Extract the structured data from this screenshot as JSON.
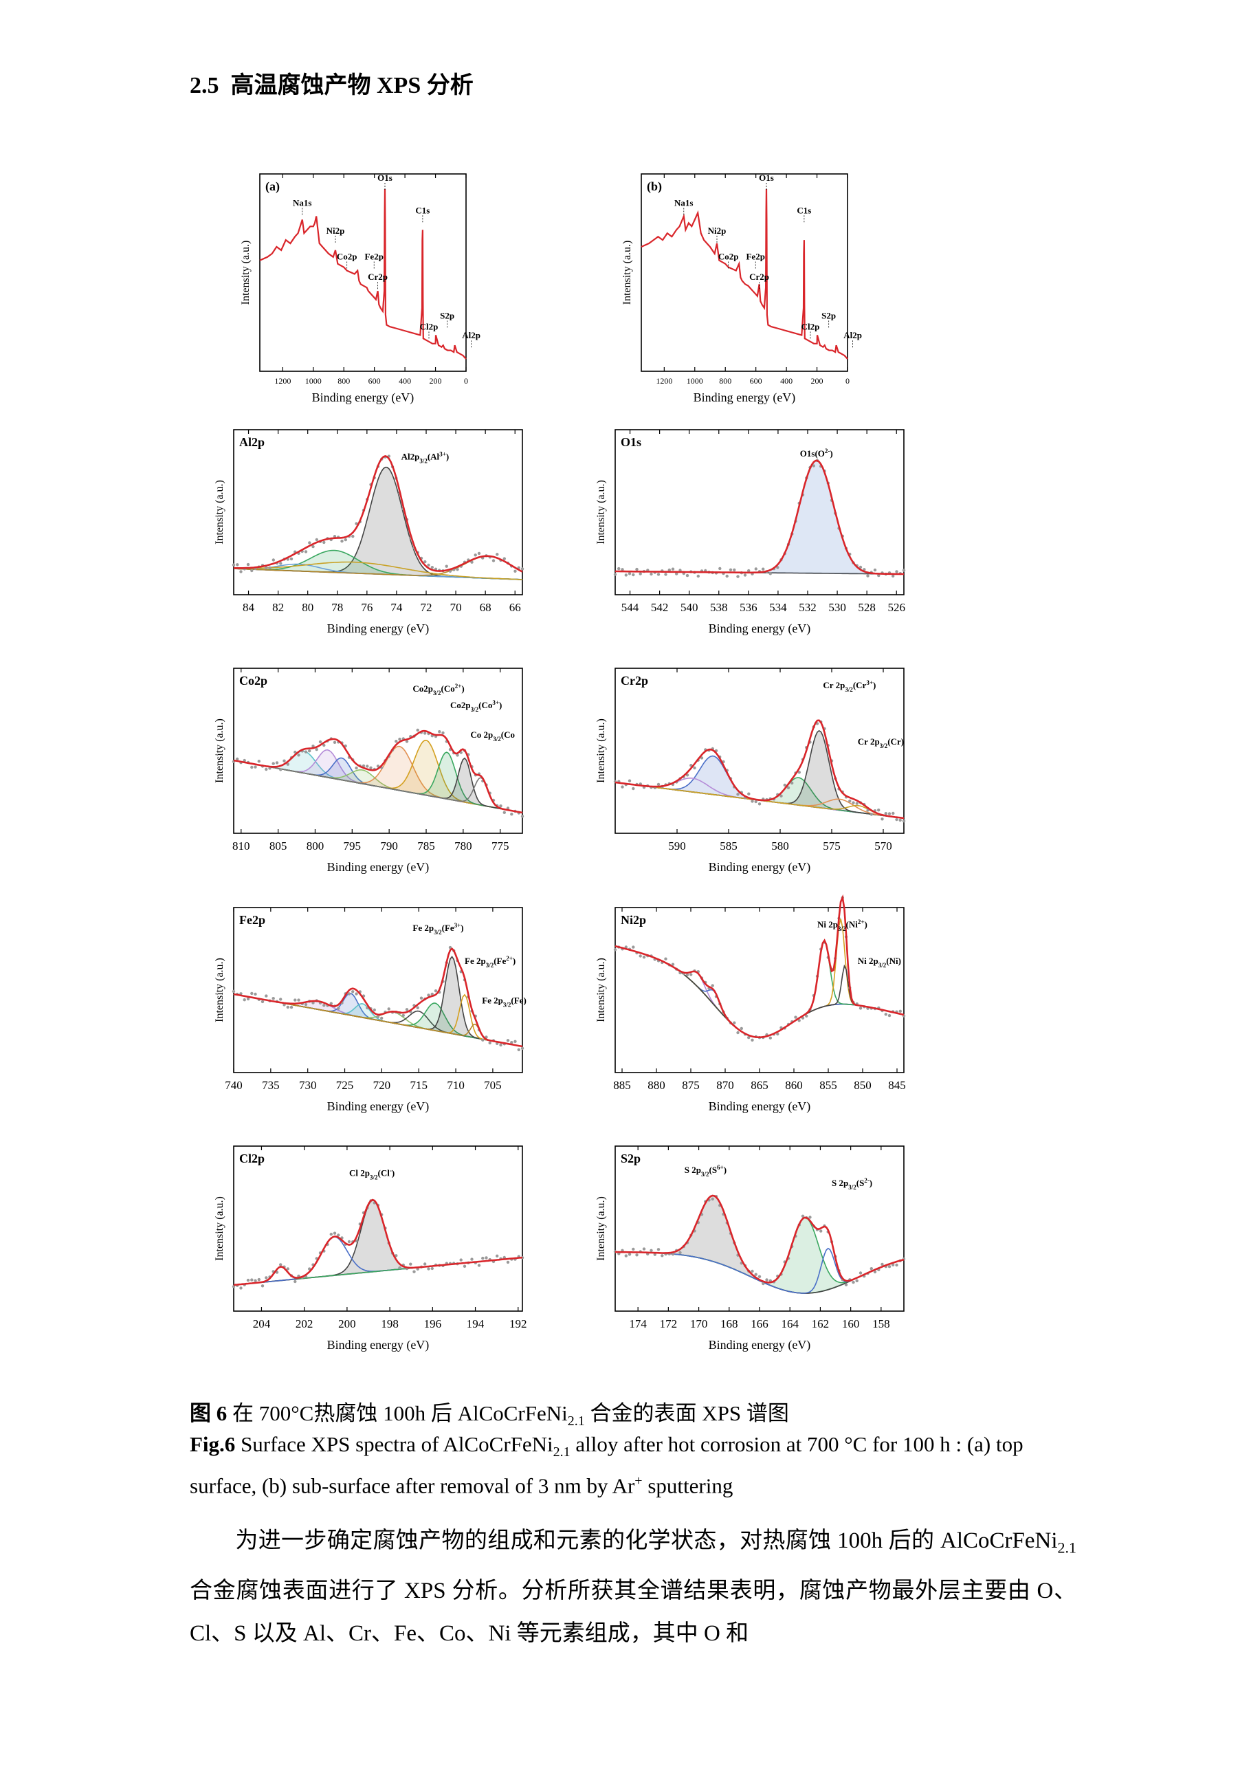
{
  "section": {
    "number": "2.5",
    "title": "高温腐蚀产物 XPS 分析"
  },
  "common": {
    "xlabel": "Binding energy (eV)",
    "ylabel": "Intensity (a.u.)"
  },
  "colors": {
    "fit": "#d9252a",
    "background": "#555555",
    "raw": "#9a9a9a"
  },
  "chart_data": [
    {
      "id": "survey-a",
      "panel": "(a)",
      "type": "line",
      "reversed_x": true,
      "xlim": [
        1350,
        0
      ],
      "ticks": [
        1200,
        1000,
        800,
        600,
        400,
        200,
        0
      ],
      "series": [
        {
          "x": [
            1350,
            1300,
            1270,
            1240,
            1210,
            1180,
            1150,
            1120,
            1100,
            1072,
            1060,
            1040,
            1020,
            1000,
            990,
            980,
            960,
            940,
            900,
            870,
            855,
            840,
            800,
            780,
            730,
            710,
            700,
            690,
            670,
            650,
            640,
            620,
            600,
            590,
            578,
            570,
            560,
            545,
            535,
            533,
            531,
            529,
            527,
            520,
            500,
            460,
            420,
            380,
            340,
            300,
            288,
            286,
            284,
            282,
            280,
            260,
            240,
            220,
            200,
            198,
            180,
            160,
            150,
            140,
            120,
            100,
            80,
            74,
            60,
            40,
            20,
            0
          ],
          "y": [
            0.58,
            0.6,
            0.62,
            0.66,
            0.64,
            0.7,
            0.68,
            0.72,
            0.74,
            0.82,
            0.74,
            0.76,
            0.78,
            0.78,
            0.8,
            0.84,
            0.68,
            0.66,
            0.62,
            0.6,
            0.64,
            0.56,
            0.54,
            0.52,
            0.5,
            0.52,
            0.46,
            0.44,
            0.43,
            0.42,
            0.4,
            0.38,
            0.36,
            0.35,
            0.4,
            0.32,
            0.3,
            0.28,
            0.4,
            0.85,
            1.0,
            0.8,
            0.26,
            0.2,
            0.19,
            0.18,
            0.17,
            0.16,
            0.15,
            0.14,
            0.3,
            0.7,
            0.76,
            0.35,
            0.12,
            0.11,
            0.1,
            0.09,
            0.09,
            0.14,
            0.08,
            0.07,
            0.08,
            0.06,
            0.05,
            0.05,
            0.04,
            0.08,
            0.04,
            0.03,
            0.02,
            0.0
          ]
        }
      ],
      "annotations": [
        "O1s",
        "Na1s",
        "Ni2p",
        "Co2p",
        "Fe2p",
        "Cr2p",
        "C1s",
        "S2p",
        "Cl2p",
        "Al2p"
      ]
    },
    {
      "id": "survey-b",
      "panel": "(b)",
      "type": "line",
      "reversed_x": true,
      "xlim": [
        1350,
        0
      ],
      "ticks": [
        1200,
        1000,
        800,
        600,
        400,
        200,
        0
      ],
      "series": [
        {
          "x": [
            1350,
            1300,
            1270,
            1240,
            1210,
            1180,
            1150,
            1120,
            1100,
            1072,
            1060,
            1040,
            1020,
            1000,
            990,
            980,
            960,
            940,
            900,
            870,
            855,
            840,
            800,
            780,
            730,
            710,
            700,
            690,
            670,
            650,
            640,
            620,
            600,
            590,
            578,
            570,
            560,
            545,
            535,
            533,
            531,
            529,
            527,
            520,
            500,
            460,
            420,
            380,
            340,
            300,
            288,
            286,
            284,
            282,
            280,
            260,
            240,
            220,
            200,
            198,
            180,
            160,
            150,
            140,
            120,
            100,
            80,
            74,
            60,
            40,
            20,
            0
          ],
          "y": [
            0.66,
            0.68,
            0.7,
            0.72,
            0.7,
            0.74,
            0.72,
            0.76,
            0.78,
            0.84,
            0.76,
            0.8,
            0.78,
            0.82,
            0.84,
            0.86,
            0.74,
            0.7,
            0.66,
            0.62,
            0.68,
            0.58,
            0.56,
            0.54,
            0.52,
            0.56,
            0.48,
            0.46,
            0.44,
            0.43,
            0.42,
            0.4,
            0.38,
            0.37,
            0.44,
            0.34,
            0.32,
            0.3,
            0.42,
            0.86,
            1.0,
            0.82,
            0.26,
            0.2,
            0.19,
            0.18,
            0.17,
            0.16,
            0.15,
            0.14,
            0.3,
            0.62,
            0.7,
            0.32,
            0.12,
            0.11,
            0.1,
            0.09,
            0.09,
            0.14,
            0.08,
            0.07,
            0.08,
            0.06,
            0.05,
            0.05,
            0.04,
            0.08,
            0.04,
            0.03,
            0.02,
            0.0
          ]
        }
      ],
      "annotations": [
        "O1s",
        "Na1s",
        "Ni2p",
        "Co2p",
        "Fe2p",
        "Cr2p",
        "C1s",
        "S2p",
        "Cl2p",
        "Al2p"
      ]
    },
    {
      "id": "al2p",
      "panel": "Al2p",
      "type": "line",
      "reversed_x": true,
      "xlim": [
        85,
        65.5
      ],
      "ticks": [
        84,
        82,
        80,
        78,
        76,
        74,
        72,
        70,
        68,
        66
      ],
      "background_line": [
        0.12,
        0.04
      ],
      "peaks": [
        {
          "center": 74.7,
          "height": 0.78,
          "width": 1.1,
          "color": "#444444",
          "fill": true
        },
        {
          "center": 78.2,
          "height": 0.16,
          "width": 1.6,
          "color": "#3aa860",
          "fill": true
        },
        {
          "center": 80.6,
          "height": 0.05,
          "width": 1.4,
          "color": "#6aa0d8",
          "fill": false
        },
        {
          "center": 67.8,
          "height": 0.16,
          "width": 1.6,
          "color": "#b5882a",
          "fill": false
        },
        {
          "center": 76.8,
          "height": 0.08,
          "width": 3.2,
          "color": "#c9a227",
          "fill": false
        }
      ],
      "annotations": [
        {
          "text": "Al2p3/2(Al3+)",
          "main": "Al2p",
          "sub": "3/2",
          "rest": "(Al",
          "sup": "3+",
          "end": ")"
        }
      ]
    },
    {
      "id": "o1s",
      "panel": "O1s",
      "type": "line",
      "reversed_x": true,
      "xlim": [
        545,
        525.5
      ],
      "ticks": [
        544,
        542,
        540,
        538,
        536,
        534,
        532,
        530,
        528,
        526
      ],
      "background_line": [
        0.1,
        0.08
      ],
      "peaks": [
        {
          "center": 531.4,
          "height": 0.82,
          "width": 1.15,
          "color": "#4a78c8",
          "fill": true
        }
      ],
      "annotations": [
        {
          "text": "O1s(O2-)",
          "main": "O1s",
          "sub": "",
          "rest": "(O",
          "sup": "2-",
          "end": ")"
        }
      ]
    },
    {
      "id": "co2p",
      "panel": "Co2p",
      "type": "line",
      "reversed_x": true,
      "xlim": [
        811,
        772
      ],
      "ticks": [
        810,
        805,
        800,
        795,
        790,
        785,
        780,
        775
      ],
      "background_line": [
        0.46,
        0.08
      ],
      "peaks": [
        {
          "center": 801.5,
          "height": 0.16,
          "width": 1.6,
          "color": "#5bc2c9",
          "fill": true
        },
        {
          "center": 798.3,
          "height": 0.2,
          "width": 1.4,
          "color": "#b58cd8",
          "fill": true
        },
        {
          "center": 796.4,
          "height": 0.16,
          "width": 1.2,
          "color": "#4a6fc8",
          "fill": true
        },
        {
          "center": 793.6,
          "height": 0.1,
          "width": 1.6,
          "color": "#8fc06a",
          "fill": true
        },
        {
          "center": 788.6,
          "height": 0.32,
          "width": 1.8,
          "color": "#e29052",
          "fill": true
        },
        {
          "center": 785.0,
          "height": 0.4,
          "width": 1.6,
          "color": "#d4a020",
          "fill": true
        },
        {
          "center": 782.2,
          "height": 0.34,
          "width": 1.2,
          "color": "#3aa860",
          "fill": true
        },
        {
          "center": 779.8,
          "height": 0.32,
          "width": 0.85,
          "color": "#444444",
          "fill": true
        },
        {
          "center": 777.6,
          "height": 0.2,
          "width": 0.9,
          "color": "#777777",
          "fill": false
        }
      ],
      "annotations": [
        {
          "text": "Co2p3/2(Co2+)",
          "main": "Co2p",
          "sub": "3/2",
          "rest": "(Co",
          "sup": "2+",
          "end": ")"
        },
        {
          "text": "Co2p3/2(Co3+)",
          "main": "Co2p",
          "sub": "3/2",
          "rest": "(Co",
          "sup": "3+",
          "end": ")"
        },
        {
          "text": "Co 2p3/2(Co",
          "main": "Co 2p",
          "sub": "3/2",
          "rest": "(Co",
          "sup": "",
          "end": ""
        }
      ]
    },
    {
      "id": "cr2p",
      "panel": "Cr2p",
      "type": "line",
      "reversed_x": true,
      "xlim": [
        596,
        568
      ],
      "ticks": [
        590,
        585,
        580,
        575,
        570
      ],
      "background_line": [
        0.3,
        0.04
      ],
      "peaks": [
        {
          "center": 586.5,
          "height": 0.28,
          "width": 1.3,
          "color": "#4a6fc8",
          "fill": true
        },
        {
          "center": 588.5,
          "height": 0.1,
          "width": 1.5,
          "color": "#b58cd8",
          "fill": false
        },
        {
          "center": 578.2,
          "height": 0.2,
          "width": 1.2,
          "color": "#3aa860",
          "fill": true
        },
        {
          "center": 576.2,
          "height": 0.56,
          "width": 0.95,
          "color": "#444444",
          "fill": true
        },
        {
          "center": 574.2,
          "height": 0.08,
          "width": 1.3,
          "color": "#e29052",
          "fill": false
        },
        {
          "center": 572.4,
          "height": 0.05,
          "width": 1.0,
          "color": "#c9a227",
          "fill": false
        }
      ],
      "annotations": [
        {
          "text": "Cr 2p3/2(Cr3+)",
          "main": "Cr 2p",
          "sub": "3/2",
          "rest": "(Cr",
          "sup": "3+",
          "end": ")"
        },
        {
          "text": "Cr 2p3/2(Cr)",
          "main": "Cr 2p",
          "sub": "3/2",
          "rest": "(Cr)",
          "sup": "",
          "end": ""
        }
      ]
    },
    {
      "id": "fe2p",
      "panel": "Fe2p",
      "type": "line",
      "reversed_x": true,
      "xlim": [
        740,
        701
      ],
      "ticks": [
        740,
        735,
        730,
        725,
        720,
        715,
        710,
        705
      ],
      "background_line": [
        0.5,
        0.12
      ],
      "peaks": [
        {
          "center": 728.5,
          "height": 0.06,
          "width": 1.8,
          "color": "#b58cd8",
          "fill": true
        },
        {
          "center": 724.2,
          "height": 0.16,
          "width": 1.0,
          "color": "#4a6fc8",
          "fill": true
        },
        {
          "center": 722.6,
          "height": 0.1,
          "width": 1.0,
          "color": "#5bc2c9",
          "fill": true
        },
        {
          "center": 718.4,
          "height": 0.08,
          "width": 1.5,
          "color": "#8fc06a",
          "fill": false
        },
        {
          "center": 715.0,
          "height": 0.12,
          "width": 1.3,
          "color": "#444444",
          "fill": false
        },
        {
          "center": 712.8,
          "height": 0.2,
          "width": 1.3,
          "color": "#3aa860",
          "fill": true
        },
        {
          "center": 710.5,
          "height": 0.56,
          "width": 0.95,
          "color": "#444444",
          "fill": true
        },
        {
          "center": 708.8,
          "height": 0.3,
          "width": 0.7,
          "color": "#d4a020",
          "fill": false
        },
        {
          "center": 707.4,
          "height": 0.1,
          "width": 0.6,
          "color": "#b5882a",
          "fill": false
        }
      ],
      "annotations": [
        {
          "text": "Fe 2p3/2(Fe3+)",
          "main": "Fe 2p",
          "sub": "3/2",
          "rest": "(Fe",
          "sup": "3+",
          "end": ")"
        },
        {
          "text": "Fe 2p3/2(Fe2+)",
          "main": "Fe 2p",
          "sub": "3/2",
          "rest": "(Fe",
          "sup": "2+",
          "end": ")"
        },
        {
          "text": "Fe 2p3/2(Fe)",
          "main": "Fe 2p",
          "sub": "3/2",
          "rest": "(Fe)",
          "sup": "",
          "end": ""
        }
      ]
    },
    {
      "id": "ni2p",
      "panel": "Ni2p",
      "type": "line",
      "reversed_x": true,
      "xlim": [
        886,
        844
      ],
      "ticks": [
        885,
        880,
        875,
        870,
        865,
        860,
        855,
        850,
        845
      ],
      "background_line": [
        0.85,
        0.35
      ],
      "background_dip": {
        "center": 866,
        "depth": 0.42,
        "width": 8
      },
      "peaks": [
        {
          "center": 874.0,
          "height": 0.1,
          "width": 1.0,
          "color": "#b58cd8",
          "fill": false
        },
        {
          "center": 871.6,
          "height": 0.1,
          "width": 0.8,
          "color": "#4a6fc8",
          "fill": false
        },
        {
          "center": 855.6,
          "height": 0.48,
          "width": 0.8,
          "color": "#3aa860",
          "fill": false
        },
        {
          "center": 853.2,
          "height": 0.62,
          "width": 0.6,
          "color": "#d4a020",
          "fill": false
        },
        {
          "center": 852.6,
          "height": 0.28,
          "width": 0.45,
          "color": "#444444",
          "fill": false
        }
      ],
      "annotations": [
        {
          "text": "Ni 2p3/2(Ni2+)",
          "main": "Ni 2p",
          "sub": "3/2",
          "rest": "(Ni",
          "sup": "2+",
          "end": ")"
        },
        {
          "text": "Ni 2p3/2(Ni)",
          "main": "Ni 2p",
          "sub": "3/2",
          "rest": "(Ni)",
          "sup": "",
          "end": ""
        }
      ]
    },
    {
      "id": "cl2p",
      "panel": "Cl2p",
      "type": "line",
      "reversed_x": true,
      "xlim": [
        205.3,
        191.8
      ],
      "ticks": [
        204,
        202,
        200,
        198,
        196,
        194,
        192
      ],
      "background_line": [
        0.12,
        0.32
      ],
      "peaks": [
        {
          "center": 198.8,
          "height": 0.52,
          "width": 0.55,
          "color": "#444444",
          "fill": true
        },
        {
          "center": 200.6,
          "height": 0.28,
          "width": 0.6,
          "color": "#4a6fc8",
          "fill": false
        },
        {
          "center": 203.1,
          "height": 0.1,
          "width": 0.3,
          "color": "#3aa860",
          "fill": false
        }
      ],
      "annotations": [
        {
          "text": "Cl 2p3/2(Cl-)",
          "main": "Cl 2p",
          "sub": "3/2",
          "rest": "(Cl",
          "sup": "-",
          "end": ")"
        }
      ]
    },
    {
      "id": "s2p",
      "panel": "S2p",
      "type": "line",
      "reversed_x": true,
      "xlim": [
        175.5,
        156.5
      ],
      "ticks": [
        174,
        172,
        170,
        168,
        166,
        164,
        162,
        160,
        158
      ],
      "background_line": [
        0.36,
        0.36
      ],
      "background_dip": {
        "center": 163,
        "depth": 0.3,
        "width": 5
      },
      "peaks": [
        {
          "center": 169.0,
          "height": 0.48,
          "width": 1.0,
          "color": "#444444",
          "fill": true
        },
        {
          "center": 163.0,
          "height": 0.55,
          "width": 0.9,
          "color": "#3aa860",
          "fill": true
        },
        {
          "center": 161.5,
          "height": 0.3,
          "width": 0.45,
          "color": "#4a6fc8",
          "fill": false
        }
      ],
      "annotations": [
        {
          "text": "S 2p3/2(S6+)",
          "main": "S 2p",
          "sub": "3/2",
          "rest": "(S",
          "sup": "6+",
          "end": ")"
        },
        {
          "text": "S 2p3/2(S2-)",
          "main": "S 2p",
          "sub": "3/2",
          "rest": "(S",
          "sup": "2-",
          "end": ")"
        }
      ]
    }
  ],
  "caption": {
    "cn_label": "图 6",
    "cn_text_before": " 在 700°C热腐蚀 100h 后 AlCoCrFeNi",
    "cn_sub": "2.1",
    "cn_text_after": " 合金的表面 XPS 谱图",
    "en_label": "Fig.6",
    "en_text_before": " Surface XPS spectra of AlCoCrFeNi",
    "en_sub": "2.1",
    "en_text_mid": " alloy after hot corrosion at 700 °C for 100 h : (a) top surface, (b) sub-surface after removal of 3 nm by Ar",
    "en_sup": "+",
    "en_text_after": " sputtering"
  },
  "paragraph": {
    "part1": "为进一步确定腐蚀产物的组成和元素的化学状态，对热腐蚀 100h 后的 AlCoCrFeNi",
    "sub": "2.1",
    "part2": " 合金腐蚀表面进行了 XPS 分析。分析所获其全谱结果表明，腐蚀产物最外层主要由 O、Cl、S 以及 Al、Cr、Fe、Co、Ni 等元素组成，其中 O 和"
  }
}
